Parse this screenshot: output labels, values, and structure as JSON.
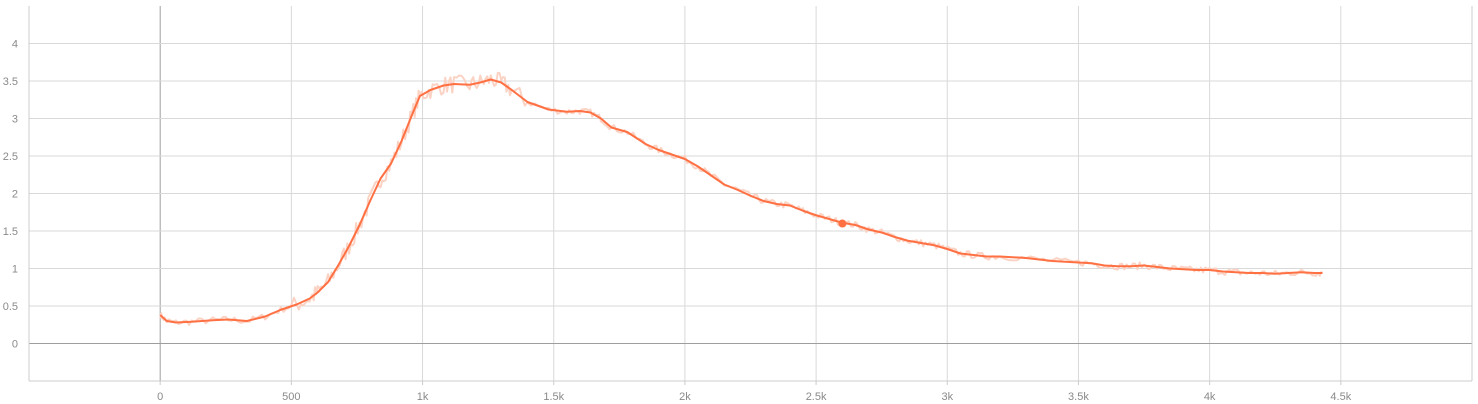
{
  "chart_data": {
    "type": "line",
    "title": "",
    "xlabel": "",
    "ylabel": "",
    "xlim": [
      -500,
      5000
    ],
    "ylim": [
      -0.5,
      4.5
    ],
    "x_ticks": [
      0,
      500,
      1000,
      1500,
      2000,
      2500,
      3000,
      3500,
      4000,
      4500
    ],
    "x_tick_labels": [
      "0",
      "500",
      "1k",
      "1.5k",
      "2k",
      "2.5k",
      "3k",
      "3.5k",
      "4k",
      "4.5k"
    ],
    "y_ticks": [
      0,
      0.5,
      1,
      1.5,
      2,
      2.5,
      3,
      3.5,
      4
    ],
    "y_tick_labels": [
      "0",
      "0.5",
      "1",
      "1.5",
      "2",
      "2.5",
      "3",
      "3.5",
      "4"
    ],
    "grid": true,
    "legend": "none",
    "colors": {
      "smoothed": "#ff7043",
      "raw": "#fbd3c5"
    },
    "series": [
      {
        "role": "smoothed",
        "x": [
          0,
          25,
          60,
          120,
          200,
          260,
          330,
          400,
          460,
          520,
          570,
          600,
          640,
          680,
          720,
          760,
          800,
          840,
          880,
          920,
          960,
          990,
          1030,
          1080,
          1120,
          1180,
          1220,
          1260,
          1300,
          1340,
          1400,
          1480,
          1550,
          1600,
          1640,
          1680,
          1720,
          1780,
          1850,
          1900,
          1950,
          2000,
          2050,
          2100,
          2150,
          2200,
          2250,
          2300,
          2350,
          2400,
          2450,
          2500,
          2550,
          2600,
          2650,
          2700,
          2750,
          2800,
          2850,
          2900,
          2950,
          3000,
          3050,
          3100,
          3150,
          3200,
          3300,
          3400,
          3500,
          3550,
          3600,
          3650,
          3700,
          3750,
          3800,
          3850,
          3900,
          3950,
          4000,
          4050,
          4100,
          4150,
          4200,
          4250,
          4300,
          4350,
          4400,
          4430
        ],
        "y": [
          0.38,
          0.3,
          0.28,
          0.29,
          0.31,
          0.32,
          0.3,
          0.36,
          0.45,
          0.52,
          0.6,
          0.68,
          0.82,
          1.05,
          1.3,
          1.58,
          1.9,
          2.2,
          2.4,
          2.7,
          3.05,
          3.3,
          3.38,
          3.44,
          3.46,
          3.45,
          3.48,
          3.52,
          3.48,
          3.38,
          3.22,
          3.12,
          3.09,
          3.1,
          3.08,
          3.0,
          2.88,
          2.82,
          2.66,
          2.58,
          2.52,
          2.46,
          2.36,
          2.24,
          2.12,
          2.05,
          1.97,
          1.9,
          1.86,
          1.84,
          1.77,
          1.71,
          1.66,
          1.61,
          1.58,
          1.52,
          1.48,
          1.42,
          1.37,
          1.34,
          1.31,
          1.26,
          1.2,
          1.18,
          1.16,
          1.16,
          1.14,
          1.1,
          1.08,
          1.07,
          1.04,
          1.03,
          1.03,
          1.04,
          1.02,
          1.0,
          0.99,
          0.98,
          0.98,
          0.96,
          0.95,
          0.94,
          0.94,
          0.93,
          0.94,
          0.95,
          0.94,
          0.94
        ]
      }
    ],
    "highlight_point": {
      "x": 2600,
      "y": 1.6
    }
  }
}
